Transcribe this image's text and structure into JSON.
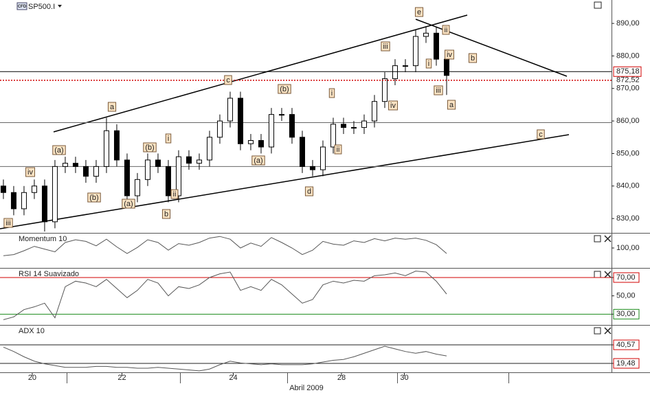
{
  "chart_data": [
    {
      "type": "candlestick",
      "title": "SP500.I",
      "symbol_tag": "CFD",
      "xlim": [
        -0.33,
        59
      ],
      "ylim": [
        825.8,
        897.2
      ],
      "open": [
        840,
        838,
        833,
        838,
        840,
        829,
        846,
        847,
        846,
        843,
        846,
        857,
        848,
        837,
        842,
        848,
        846,
        837,
        849,
        847,
        848,
        855,
        860,
        867,
        853,
        854,
        852,
        862,
        862,
        855,
        846,
        845,
        852,
        859,
        858,
        858,
        860,
        866,
        873,
        877,
        877,
        886,
        887,
        879
      ],
      "high": [
        842,
        840,
        840,
        842,
        842,
        848,
        849,
        849,
        848,
        848,
        861,
        859,
        850,
        844,
        850,
        850,
        848,
        851,
        851,
        850,
        857,
        862,
        869,
        869,
        856,
        856,
        864,
        864,
        864,
        857,
        848,
        854,
        861,
        861,
        860,
        862,
        868,
        875,
        879,
        879,
        888,
        889,
        889,
        881
      ],
      "low": [
        836,
        831,
        831,
        836,
        826,
        827,
        844,
        844,
        841,
        841,
        844,
        846,
        835,
        835,
        840,
        844,
        835,
        835,
        845,
        845,
        846,
        853,
        858,
        851,
        851,
        850,
        850,
        860,
        853,
        844,
        843,
        843,
        850,
        856,
        856,
        856,
        858,
        864,
        871,
        875,
        875,
        884,
        877,
        868
      ],
      "close": [
        838,
        833,
        838,
        840,
        829,
        846,
        847,
        846,
        843,
        846,
        857,
        848,
        837,
        842,
        848,
        846,
        837,
        849,
        847,
        848,
        855,
        860,
        867,
        853,
        854,
        852,
        862,
        862,
        855,
        846,
        845,
        852,
        859,
        858,
        858,
        860,
        866,
        873,
        877,
        877,
        886,
        887,
        879,
        874
      ],
      "yticks": [
        {
          "value": 830,
          "label": "830,00"
        },
        {
          "value": 840,
          "label": "840,00"
        },
        {
          "value": 850,
          "label": "850,00"
        },
        {
          "value": 860,
          "label": "860,00"
        },
        {
          "value": 870,
          "label": "870,00"
        },
        {
          "value": 880,
          "label": "880,00"
        },
        {
          "value": 890,
          "label": "890,00"
        }
      ],
      "price_lines": [
        {
          "value": 875.18,
          "label": "875,18"
        },
        {
          "value": 872.52,
          "label": "872,52"
        }
      ],
      "levels": [
        859.5,
        846
      ],
      "wave_labels": [
        "iii",
        "iv",
        "(a)",
        "(b)",
        "a",
        "(a)",
        "(b)",
        "i",
        "ii",
        "b",
        "c",
        "(a)",
        "(b)",
        "d",
        "i",
        "ii",
        "iii",
        "iv",
        "e",
        "ii",
        "i",
        "iv",
        "iii",
        "a",
        "b",
        "c"
      ]
    },
    {
      "type": "line",
      "title": "Momentum 10",
      "color": "#555555",
      "xlim": [
        -0.33,
        59
      ],
      "ylim": [
        96.5,
        102.5
      ],
      "values": [
        98.6,
        98.8,
        99.5,
        100.3,
        99.8,
        99.3,
        101.0,
        101.5,
        101.2,
        100.4,
        101.6,
        100.2,
        99.0,
        100.1,
        101.5,
        101.0,
        99.6,
        100.8,
        100.5,
        101.0,
        101.8,
        102.1,
        101.6,
        100.0,
        100.9,
        100.3,
        101.9,
        101.0,
        100.0,
        98.8,
        99.6,
        101.2,
        100.7,
        100.5,
        101.3,
        101.0,
        101.7,
        101.3,
        101.8,
        101.6,
        101.8,
        101.4,
        100.6,
        99.0
      ],
      "yticks": [
        {
          "value": 100,
          "label": "100,00"
        }
      ]
    },
    {
      "type": "line",
      "title": "RSI 14 Suavizado",
      "color": "#555555",
      "xlim": [
        -0.33,
        59
      ],
      "ylim": [
        19,
        79
      ],
      "values": [
        24,
        27,
        35,
        38,
        42,
        26,
        60,
        66,
        64,
        60,
        68,
        58,
        48,
        56,
        68,
        64,
        50,
        60,
        58,
        62,
        70,
        74,
        76,
        56,
        60,
        56,
        68,
        62,
        52,
        42,
        46,
        62,
        66,
        64,
        67,
        66,
        72,
        73,
        75,
        72,
        77,
        76,
        66,
        52
      ],
      "yticks": [
        {
          "value": 70,
          "label": "70,00"
        },
        {
          "value": 50,
          "label": "50,00"
        },
        {
          "value": 30,
          "label": "30,00"
        }
      ],
      "level_colors": [
        "#d00000",
        null,
        "#1a8a1a"
      ]
    },
    {
      "type": "line",
      "title": "ADX 10",
      "color": "#555555",
      "xlim": [
        -0.33,
        59
      ],
      "ylim": [
        9.3,
        61.7
      ],
      "values": [
        38,
        33,
        27,
        22,
        19,
        17,
        15,
        15,
        15,
        16,
        16,
        15,
        15,
        14,
        14,
        15,
        14,
        13,
        12,
        11,
        13,
        18,
        22,
        20,
        19,
        18,
        19,
        18,
        18,
        18,
        19,
        21,
        23,
        24,
        27,
        31,
        35,
        39,
        36,
        33,
        31,
        33,
        30,
        28
      ],
      "yticks": [
        {
          "value": 40.57,
          "label": "40,57"
        },
        {
          "value": 19.48,
          "label": "19,48"
        }
      ],
      "level_colors": [
        "#222222",
        "#222222"
      ],
      "xlabel": "Abril 2009",
      "xticks": [
        {
          "value": 2.8,
          "label": "20"
        },
        {
          "value": 11.5,
          "label": "22"
        },
        {
          "value": 22.3,
          "label": "24"
        },
        {
          "value": 32.8,
          "label": "28"
        },
        {
          "value": 38.9,
          "label": "30"
        }
      ]
    }
  ]
}
